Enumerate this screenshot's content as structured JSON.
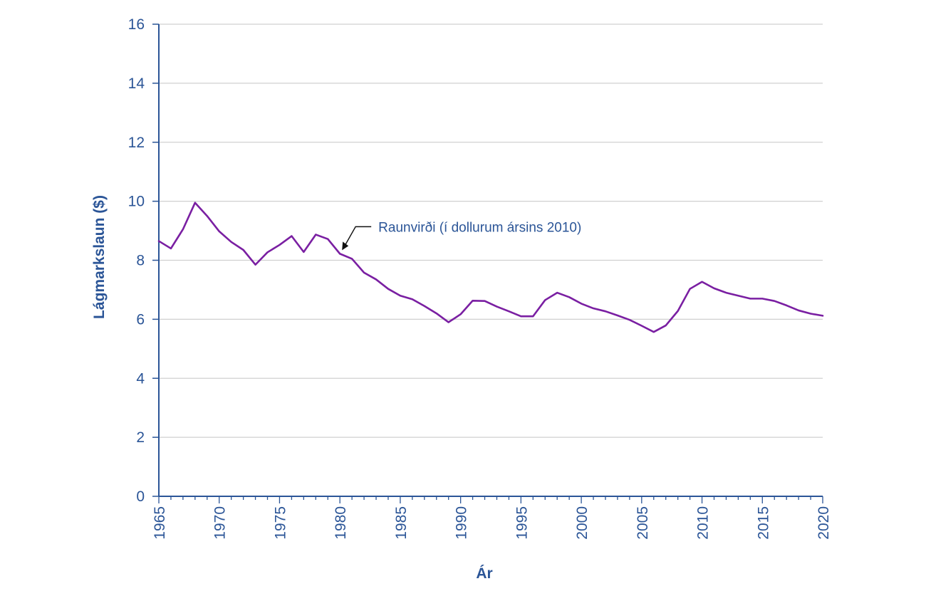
{
  "colors": {
    "axis": "#2b5597",
    "grid": "#d0d0d0",
    "series": "#7a1fa2",
    "text": "#2b5597"
  },
  "chart_data": {
    "type": "line",
    "title": "",
    "xlabel": "Ár",
    "ylabel": "Lágmarkslaun ($)",
    "xlim": [
      1965,
      2020
    ],
    "ylim": [
      0,
      16
    ],
    "grid": true,
    "x_ticks": [
      "1965",
      "1970",
      "1975",
      "1980",
      "1985",
      "1990",
      "1995",
      "2000",
      "2005",
      "2010",
      "2015",
      "2020"
    ],
    "y_ticks": [
      "0",
      "2",
      "4",
      "6",
      "8",
      "10",
      "12",
      "14",
      "16"
    ],
    "series": [
      {
        "name": "Raunvirði (í dollurum ársins 2010)",
        "x": [
          1965,
          1966,
          1967,
          1968,
          1969,
          1970,
          1971,
          1972,
          1973,
          1974,
          1975,
          1976,
          1977,
          1978,
          1979,
          1980,
          1981,
          1982,
          1983,
          1984,
          1985,
          1986,
          1987,
          1988,
          1989,
          1990,
          1991,
          1992,
          1993,
          1994,
          1995,
          1996,
          1997,
          1998,
          1999,
          2000,
          2001,
          2002,
          2003,
          2004,
          2005,
          2006,
          2007,
          2008,
          2009,
          2010,
          2011,
          2012,
          2013,
          2014,
          2015,
          2016,
          2017,
          2018,
          2019,
          2020
        ],
        "y": [
          8.65,
          8.4,
          9.05,
          9.95,
          9.5,
          8.98,
          8.62,
          8.35,
          7.85,
          8.27,
          8.52,
          8.82,
          8.28,
          8.87,
          8.72,
          8.22,
          8.05,
          7.58,
          7.35,
          7.03,
          6.8,
          6.68,
          6.45,
          6.2,
          5.9,
          6.17,
          6.63,
          6.62,
          6.43,
          6.27,
          6.1,
          6.1,
          6.65,
          6.9,
          6.75,
          6.53,
          6.37,
          6.27,
          6.13,
          5.98,
          5.78,
          5.57,
          5.79,
          6.28,
          7.03,
          7.27,
          7.05,
          6.9,
          6.8,
          6.7,
          6.7,
          6.62,
          6.47,
          6.3,
          6.19,
          6.12
        ]
      }
    ],
    "annotations": [
      {
        "text": "Raunvirði (í dollurum ársins 2010)",
        "x": 1980,
        "y": 8.22
      }
    ]
  }
}
